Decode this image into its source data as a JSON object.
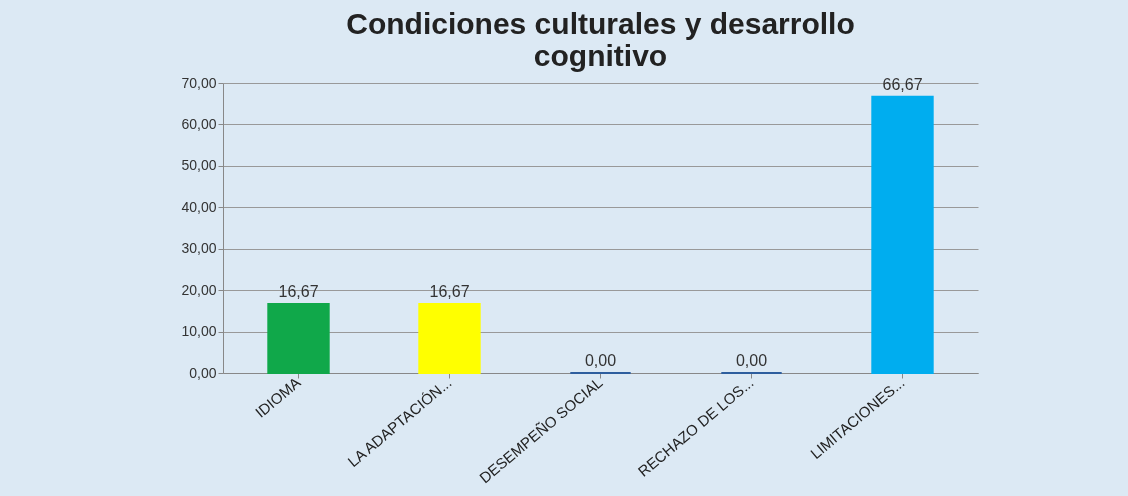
{
  "chart_data": {
    "type": "bar",
    "title": "Condiciones culturales y desarrollo cognitivo",
    "categories": [
      "IDIOMA",
      "LA ADAPTACIÓN...",
      "DESEMPEÑO SOCIAL",
      "RECHAZO DE LOS...",
      "LIMITACIONES..."
    ],
    "values": [
      16.67,
      16.67,
      0,
      0,
      66.67
    ],
    "colors": [
      "#10a84a",
      "#ffff00",
      "#2e5e9e",
      "#2e5e9e",
      "#00adef"
    ],
    "value_labels": [
      "16,67",
      "16,67",
      "0,00",
      "0,00",
      "66,67"
    ],
    "ylim": [
      0,
      70
    ],
    "yticks": [
      {
        "value": 0,
        "label": "0,00"
      },
      {
        "value": 10,
        "label": "10,00"
      },
      {
        "value": 20,
        "label": "20,00"
      },
      {
        "value": 30,
        "label": "30,00"
      },
      {
        "value": 40,
        "label": "40,00"
      },
      {
        "value": 50,
        "label": "50,00"
      },
      {
        "value": 60,
        "label": "60,00"
      },
      {
        "value": 70,
        "label": "70,00"
      }
    ],
    "grid": true
  }
}
